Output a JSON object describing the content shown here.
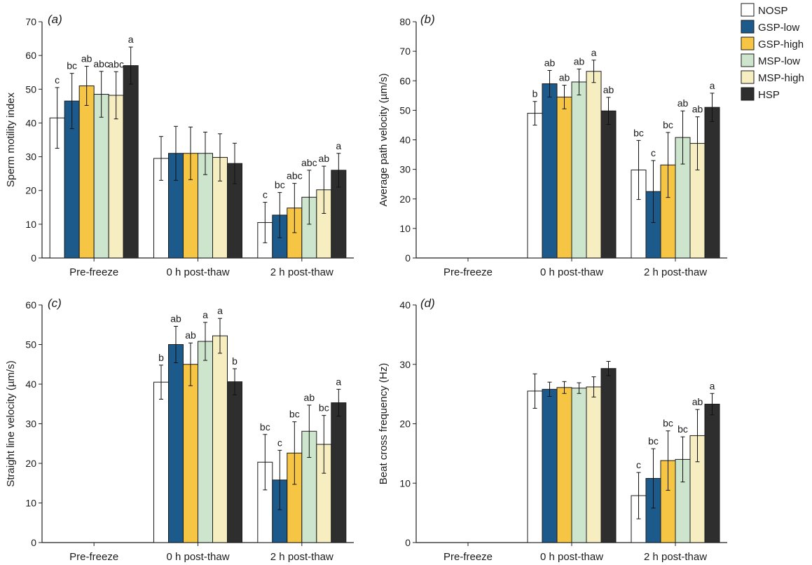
{
  "chart_data": [
    {
      "type": "bar",
      "panel": "(a)",
      "ylabel": "Sperm motility index",
      "ylim": [
        0,
        70
      ],
      "yticks": [
        0,
        10,
        20,
        30,
        40,
        50,
        60,
        70
      ],
      "categories": [
        "Pre-freeze",
        "0 h post-thaw",
        "2 h post-thaw"
      ],
      "series": [
        {
          "name": "NOSP",
          "values": [
            41.5,
            29.5,
            10.5
          ],
          "errors": [
            9,
            6.5,
            6
          ],
          "letters": [
            "c",
            "",
            "c"
          ]
        },
        {
          "name": "GSP-low",
          "values": [
            46.5,
            31,
            12.7
          ],
          "errors": [
            8.2,
            8,
            6.7
          ],
          "letters": [
            "bc",
            "",
            "bc"
          ]
        },
        {
          "name": "GSP-high",
          "values": [
            51,
            31,
            14.8
          ],
          "errors": [
            5.8,
            7.8,
            7.3
          ],
          "letters": [
            "ab",
            "",
            "abc"
          ]
        },
        {
          "name": "MSP-low",
          "values": [
            48.5,
            31,
            18
          ],
          "errors": [
            6.8,
            6.3,
            8
          ],
          "letters": [
            "abc",
            "",
            "abc"
          ]
        },
        {
          "name": "MSP-high",
          "values": [
            48.2,
            29.8,
            20.2
          ],
          "errors": [
            7,
            7,
            7
          ],
          "letters": [
            "abc",
            "",
            "ab"
          ]
        },
        {
          "name": "HSP",
          "values": [
            57,
            28,
            26
          ],
          "errors": [
            5.5,
            6,
            5
          ],
          "letters": [
            "a",
            "",
            "a"
          ]
        }
      ]
    },
    {
      "type": "bar",
      "panel": "(b)",
      "ylabel": "Average path velocity (µm/s)",
      "ylim": [
        0,
        80
      ],
      "yticks": [
        0,
        10,
        20,
        30,
        40,
        50,
        60,
        70,
        80
      ],
      "categories": [
        "Pre-freeze",
        "0 h post-thaw",
        "2 h post-thaw"
      ],
      "series": [
        {
          "name": "NOSP",
          "values": [
            null,
            49,
            29.8
          ],
          "errors": [
            null,
            4,
            10
          ],
          "letters": [
            "",
            "b",
            "bc"
          ]
        },
        {
          "name": "GSP-low",
          "values": [
            null,
            59,
            22.5
          ],
          "errors": [
            null,
            4.5,
            10.5
          ],
          "letters": [
            "",
            "ab",
            "c"
          ]
        },
        {
          "name": "GSP-high",
          "values": [
            null,
            54.5,
            31.5
          ],
          "errors": [
            null,
            4,
            11
          ],
          "letters": [
            "",
            "ab",
            "bc"
          ]
        },
        {
          "name": "MSP-low",
          "values": [
            null,
            59.6,
            40.8
          ],
          "errors": [
            null,
            4.4,
            9
          ],
          "letters": [
            "",
            "ab",
            "ab"
          ]
        },
        {
          "name": "MSP-high",
          "values": [
            null,
            63.2,
            38.8
          ],
          "errors": [
            null,
            3.8,
            9
          ],
          "letters": [
            "",
            "a",
            "ab"
          ]
        },
        {
          "name": "HSP",
          "values": [
            null,
            49.8,
            51
          ],
          "errors": [
            null,
            4.6,
            4.8
          ],
          "letters": [
            "",
            "ab",
            "a"
          ]
        }
      ]
    },
    {
      "type": "bar",
      "panel": "(c)",
      "ylabel": "Straight line velocity (µm/s)",
      "ylim": [
        0,
        60
      ],
      "yticks": [
        0,
        10,
        20,
        30,
        40,
        50,
        60
      ],
      "categories": [
        "Pre-freeze",
        "0 h post-thaw",
        "2 h post-thaw"
      ],
      "series": [
        {
          "name": "NOSP",
          "values": [
            null,
            40.5,
            20.3
          ],
          "errors": [
            null,
            4.3,
            7
          ],
          "letters": [
            "",
            "b",
            "bc"
          ]
        },
        {
          "name": "GSP-low",
          "values": [
            null,
            50,
            15.8
          ],
          "errors": [
            null,
            4.6,
            7.5
          ],
          "letters": [
            "",
            "ab",
            "c"
          ]
        },
        {
          "name": "GSP-high",
          "values": [
            null,
            45,
            22.6
          ],
          "errors": [
            null,
            5.4,
            7.9
          ],
          "letters": [
            "",
            "ab",
            "bc"
          ]
        },
        {
          "name": "MSP-low",
          "values": [
            null,
            50.8,
            28.1
          ],
          "errors": [
            null,
            4.8,
            6.6
          ],
          "letters": [
            "",
            "a",
            "ab"
          ]
        },
        {
          "name": "MSP-high",
          "values": [
            null,
            52.2,
            24.8
          ],
          "errors": [
            null,
            4.4,
            7.3
          ],
          "letters": [
            "",
            "a",
            "bc"
          ]
        },
        {
          "name": "HSP",
          "values": [
            null,
            40.6,
            35.3
          ],
          "errors": [
            null,
            3.3,
            3.4
          ],
          "letters": [
            "",
            "b",
            "a"
          ]
        }
      ]
    },
    {
      "type": "bar",
      "panel": "(d)",
      "ylabel": "Beat cross frequency (Hz)",
      "ylim": [
        0,
        40
      ],
      "yticks": [
        0,
        10,
        20,
        30,
        40
      ],
      "categories": [
        "Pre-freeze",
        "0 h post-thaw",
        "2 h post-thaw"
      ],
      "series": [
        {
          "name": "NOSP",
          "values": [
            null,
            25.5,
            7.9
          ],
          "errors": [
            null,
            2.9,
            3.9
          ],
          "letters": [
            "",
            "",
            "c"
          ]
        },
        {
          "name": "GSP-low",
          "values": [
            null,
            25.8,
            10.8
          ],
          "errors": [
            null,
            1.2,
            5
          ],
          "letters": [
            "",
            "",
            "bc"
          ]
        },
        {
          "name": "GSP-high",
          "values": [
            null,
            26.1,
            13.8
          ],
          "errors": [
            null,
            1,
            5
          ],
          "letters": [
            "",
            "",
            "bc"
          ]
        },
        {
          "name": "MSP-low",
          "values": [
            null,
            26,
            14
          ],
          "errors": [
            null,
            0.9,
            3.8
          ],
          "letters": [
            "",
            "",
            "bc"
          ]
        },
        {
          "name": "MSP-high",
          "values": [
            null,
            26.2,
            18
          ],
          "errors": [
            null,
            1.7,
            4.4
          ],
          "letters": [
            "",
            "",
            "ab"
          ]
        },
        {
          "name": "HSP",
          "values": [
            null,
            29.3,
            23.3
          ],
          "errors": [
            null,
            1.2,
            1.8
          ],
          "letters": [
            "",
            "",
            "a"
          ]
        }
      ]
    }
  ],
  "legend": {
    "position": "top-right",
    "items": [
      {
        "name": "NOSP",
        "color": "#ffffff"
      },
      {
        "name": "GSP-low",
        "color": "#1c5a8c"
      },
      {
        "name": "GSP-high",
        "color": "#f7c544"
      },
      {
        "name": "MSP-low",
        "color": "#cde5cd"
      },
      {
        "name": "MSP-high",
        "color": "#f6edc0"
      },
      {
        "name": "HSP",
        "color": "#2e2e2e"
      }
    ]
  }
}
